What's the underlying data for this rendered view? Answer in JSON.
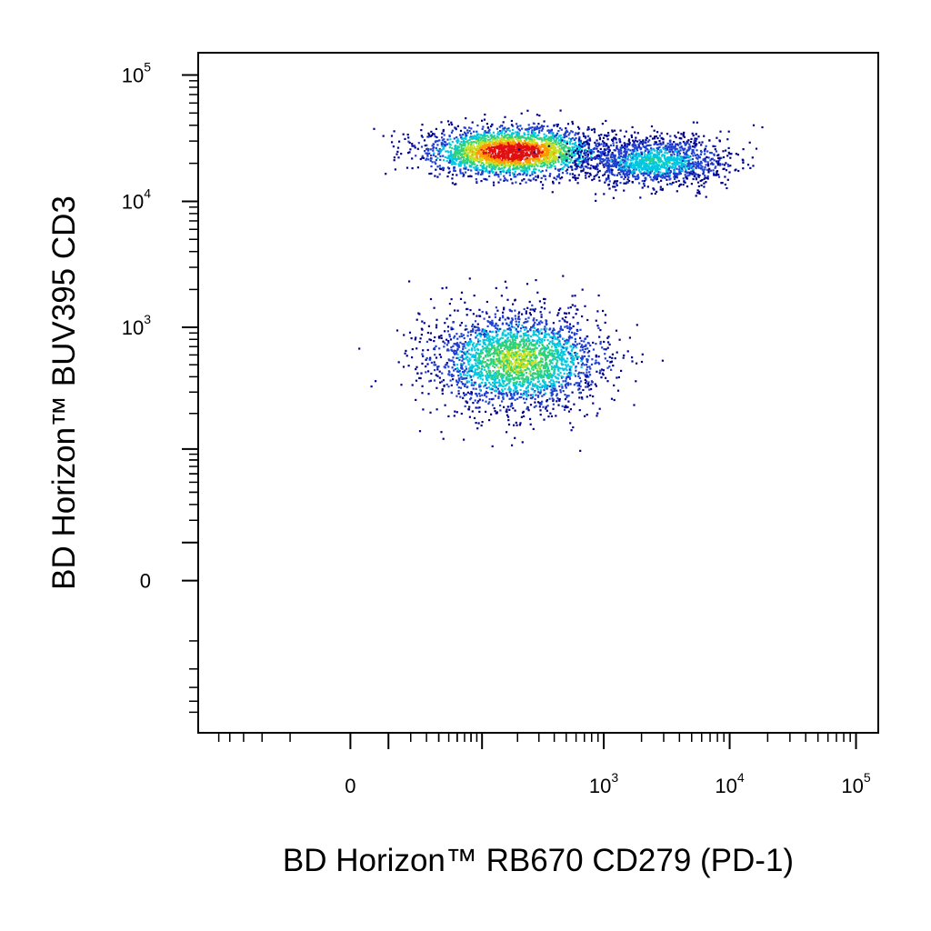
{
  "chart_data": {
    "type": "scatter",
    "title": "",
    "xlabel": "BD Horizon™ RB670 CD279 (PD-1)",
    "ylabel": "BD Horizon™ BUV395 CD3",
    "x_scale": "biexponential",
    "y_scale": "biexponential",
    "xlim": [
      -150,
      150000
    ],
    "ylim": [
      -150,
      150000
    ],
    "x_ticks": [
      {
        "value": 0,
        "base": "0",
        "exp": ""
      },
      {
        "value": 1000,
        "base": "10",
        "exp": "3"
      },
      {
        "value": 10000,
        "base": "10",
        "exp": "4"
      },
      {
        "value": 100000,
        "base": "10",
        "exp": "5"
      }
    ],
    "y_ticks": [
      {
        "value": 0,
        "base": "0",
        "exp": ""
      },
      {
        "value": 1000,
        "base": "10",
        "exp": "3"
      },
      {
        "value": 10000,
        "base": "10",
        "exp": "4"
      },
      {
        "value": 100000,
        "base": "10",
        "exp": "5"
      }
    ],
    "color_map": [
      "#00008b",
      "#1f3fd0",
      "#00c8e0",
      "#2fd27a",
      "#c8e020",
      "#ff9a00",
      "#e01010"
    ],
    "grid": false,
    "legend": "none",
    "series": [
      {
        "kind": "density-points",
        "population": [
          {
            "center": [
              180,
              25000
            ],
            "spread": [
              0.35,
              0.1
            ],
            "count": 2600,
            "peak_density": 1.0
          },
          {
            "center": [
              2500,
              21000
            ],
            "spread": [
              0.3,
              0.1
            ],
            "count": 1500,
            "peak_density": 0.35
          },
          {
            "center": [
              200,
              550
            ],
            "spread": [
              0.35,
              0.2
            ],
            "count": 2600,
            "peak_density": 0.55
          }
        ]
      }
    ]
  }
}
